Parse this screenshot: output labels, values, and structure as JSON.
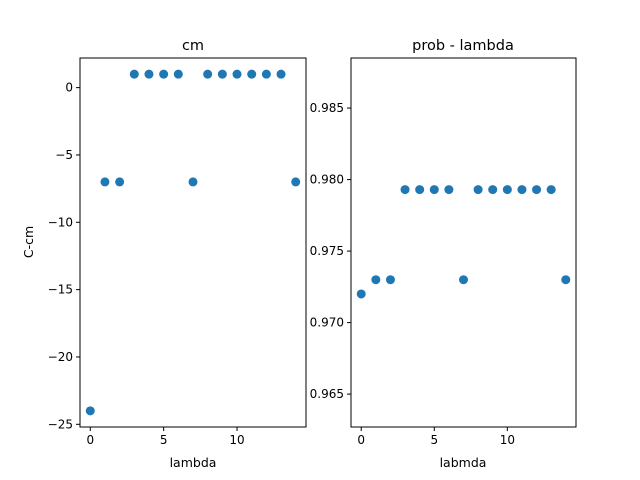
{
  "chart_data": [
    {
      "type": "scatter",
      "title": "cm",
      "xlabel": "lambda",
      "ylabel": "C-cm",
      "xlim": [
        -0.7,
        14.7
      ],
      "ylim": [
        -25.2,
        2.2
      ],
      "xticks": [
        0,
        5,
        10
      ],
      "xtick_labels": [
        "0",
        "5",
        "10"
      ],
      "yticks": [
        0,
        -5,
        -10,
        -15,
        -20,
        -25
      ],
      "ytick_labels": [
        "0",
        "−5",
        "−10",
        "−15",
        "−20",
        "−25"
      ],
      "grid": false,
      "color": "#1f77b4",
      "x": [
        0,
        1,
        2,
        3,
        4,
        5,
        6,
        7,
        8,
        9,
        10,
        11,
        12,
        13,
        14
      ],
      "y": [
        -24,
        -7,
        -7,
        1,
        1,
        1,
        1,
        -7,
        1,
        1,
        1,
        1,
        1,
        1,
        -7
      ]
    },
    {
      "type": "scatter",
      "title": "prob - lambda",
      "xlabel": "labmda",
      "ylabel": "",
      "xlim": [
        -0.7,
        14.7
      ],
      "ylim": [
        0.9627,
        0.9885
      ],
      "xticks": [
        0,
        5,
        10
      ],
      "xtick_labels": [
        "0",
        "5",
        "10"
      ],
      "yticks": [
        0.965,
        0.97,
        0.975,
        0.98,
        0.985
      ],
      "ytick_labels": [
        "0.965",
        "0.970",
        "0.975",
        "0.980",
        "0.985"
      ],
      "grid": false,
      "color": "#1f77b4",
      "x": [
        0,
        1,
        2,
        3,
        4,
        5,
        6,
        7,
        8,
        9,
        10,
        11,
        12,
        13,
        14
      ],
      "y": [
        0.972,
        0.973,
        0.973,
        0.9793,
        0.9793,
        0.9793,
        0.9793,
        0.973,
        0.9793,
        0.9793,
        0.9793,
        0.9793,
        0.9793,
        0.9793,
        0.973
      ]
    }
  ]
}
